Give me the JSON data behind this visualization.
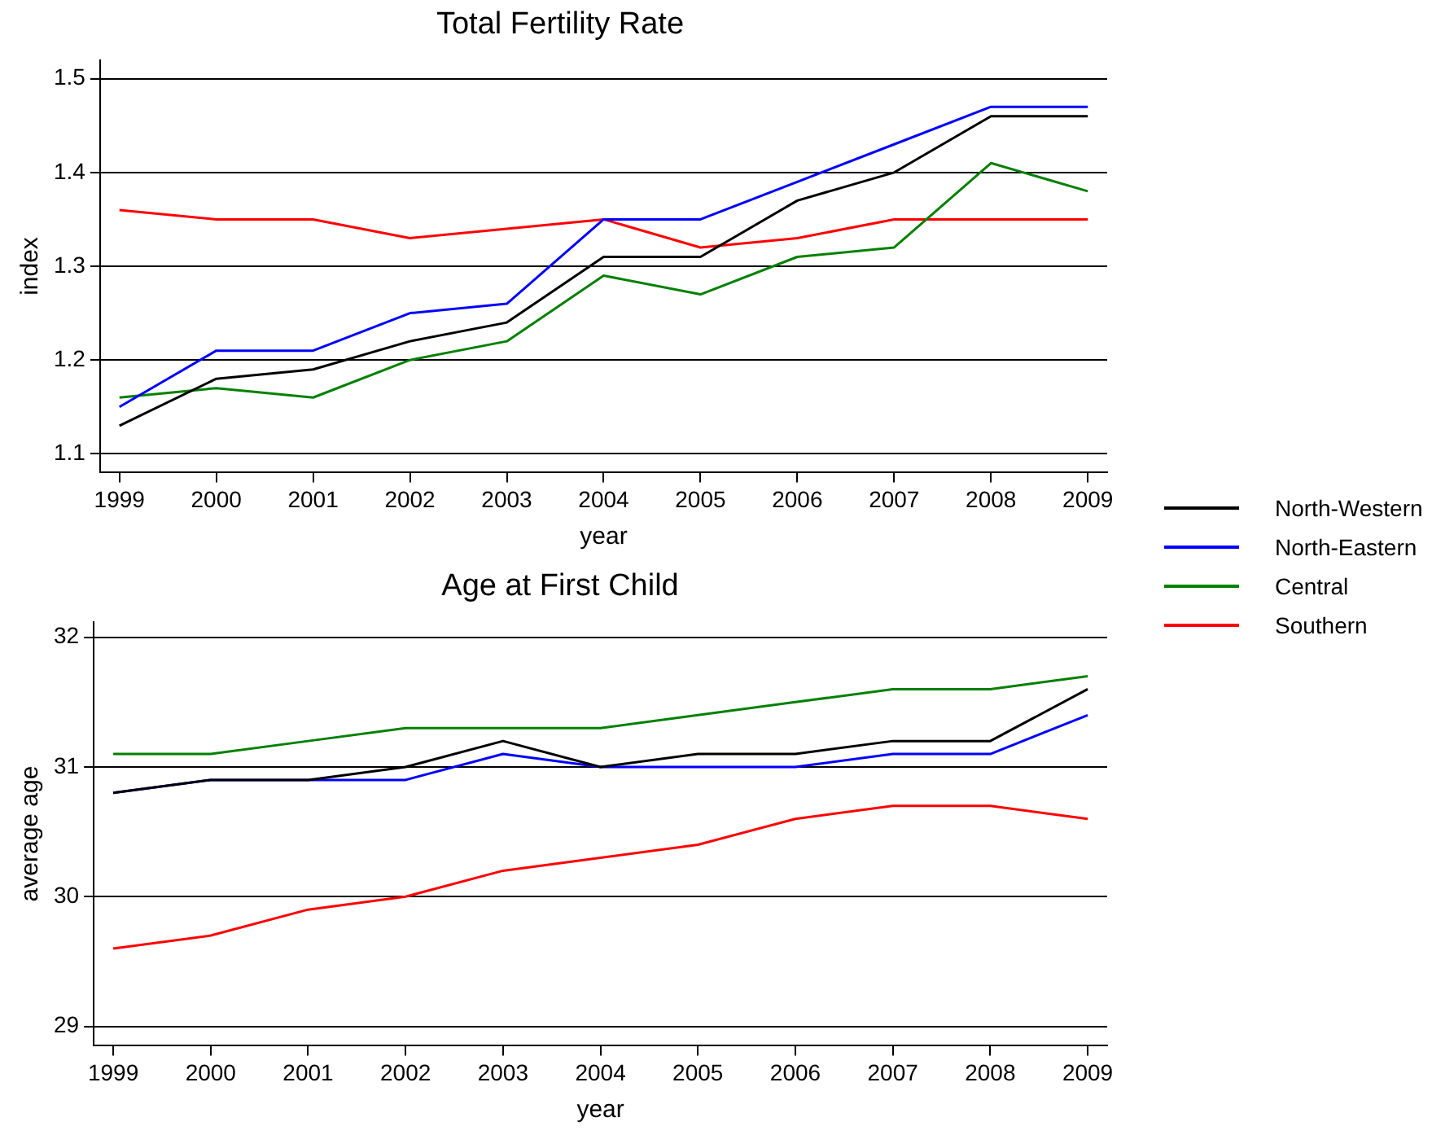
{
  "chart_data": [
    {
      "type": "line",
      "title": "Total Fertility Rate",
      "xlabel": "year",
      "ylabel": "index",
      "x": [
        1999,
        2000,
        2001,
        2002,
        2003,
        2004,
        2005,
        2006,
        2007,
        2008,
        2009
      ],
      "series": [
        {
          "name": "North-Western",
          "color": "#000000",
          "values": [
            1.13,
            1.18,
            1.19,
            1.22,
            1.24,
            1.31,
            1.31,
            1.37,
            1.4,
            1.46,
            1.46
          ]
        },
        {
          "name": "North-Eastern",
          "color": "#0000ff",
          "values": [
            1.15,
            1.21,
            1.21,
            1.25,
            1.26,
            1.35,
            1.35,
            1.39,
            1.43,
            1.47,
            1.47
          ]
        },
        {
          "name": "Central",
          "color": "#008000",
          "values": [
            1.16,
            1.17,
            1.16,
            1.2,
            1.22,
            1.29,
            1.27,
            1.31,
            1.32,
            1.41,
            1.38
          ]
        },
        {
          "name": "Southern",
          "color": "#ff0000",
          "values": [
            1.36,
            1.35,
            1.35,
            1.33,
            1.34,
            1.35,
            1.32,
            1.33,
            1.35,
            1.35,
            1.35
          ]
        }
      ],
      "xlim": [
        1998.8,
        2009.2
      ],
      "xticks": [
        1999,
        2000,
        2001,
        2002,
        2003,
        2004,
        2005,
        2006,
        2007,
        2008,
        2009
      ],
      "ylim": [
        1.08,
        1.52
      ],
      "yticks": [
        1.1,
        1.2,
        1.3,
        1.4,
        1.5
      ],
      "grid": "y",
      "legend": "right",
      "marker": "none",
      "line_style": "solid"
    },
    {
      "type": "line",
      "title": "Age at First Child",
      "xlabel": "year",
      "ylabel": "average age",
      "x": [
        1999,
        2000,
        2001,
        2002,
        2003,
        2004,
        2005,
        2006,
        2007,
        2008,
        2009
      ],
      "series": [
        {
          "name": "North-Western",
          "color": "#000000",
          "values": [
            30.8,
            30.9,
            30.9,
            31.0,
            31.2,
            31.0,
            31.1,
            31.1,
            31.2,
            31.2,
            31.6
          ]
        },
        {
          "name": "North-Eastern",
          "color": "#0000ff",
          "values": [
            30.8,
            30.9,
            30.9,
            30.9,
            31.1,
            31.0,
            31.0,
            31.0,
            31.1,
            31.1,
            31.4
          ]
        },
        {
          "name": "Central",
          "color": "#008000",
          "values": [
            31.1,
            31.1,
            31.2,
            31.3,
            31.3,
            31.3,
            31.4,
            31.5,
            31.6,
            31.6,
            31.7
          ]
        },
        {
          "name": "Southern",
          "color": "#ff0000",
          "values": [
            29.6,
            29.7,
            29.9,
            30.0,
            30.2,
            30.3,
            30.4,
            30.6,
            30.7,
            30.7,
            30.6
          ]
        }
      ],
      "xlim": [
        1998.8,
        2009.2
      ],
      "xticks": [
        1999,
        2000,
        2001,
        2002,
        2003,
        2004,
        2005,
        2006,
        2007,
        2008,
        2009
      ],
      "ylim": [
        28.85,
        32.12
      ],
      "yticks": [
        29,
        30,
        31,
        32
      ],
      "grid": "y",
      "legend": "right",
      "marker": "none",
      "line_style": "solid"
    }
  ]
}
